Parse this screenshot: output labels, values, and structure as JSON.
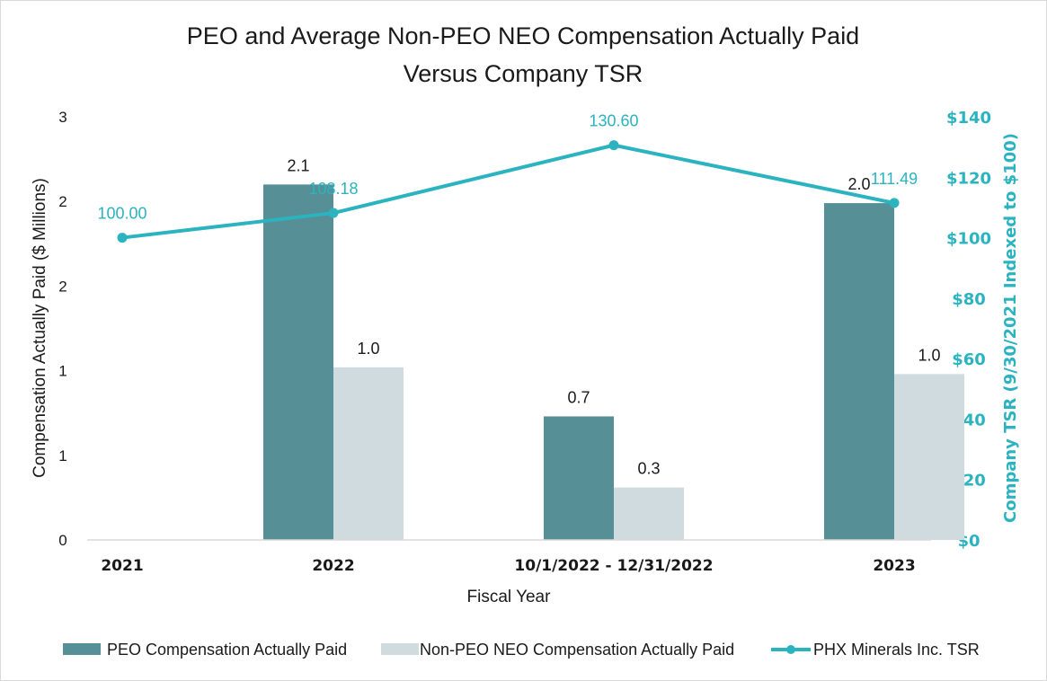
{
  "chart_data": {
    "type": "bar",
    "title_lines": [
      "PEO and Average Non-PEO NEO Compensation Actually Paid",
      "Versus Company TSR"
    ],
    "xlabel": "Fiscal Year",
    "ylabel": "Compensation Actually Paid ($ Millions)",
    "y2label": "Company TSR (9/30/2021 Indexed to $100)",
    "categories": [
      "2021",
      "2022",
      "10/1/2022 - 12/31/2022",
      "2023"
    ],
    "ylim": [
      0,
      2.5
    ],
    "y_ticks": [
      {
        "value": 0,
        "label": "0"
      },
      {
        "value": 0.5,
        "label": "1"
      },
      {
        "value": 1.0,
        "label": "1"
      },
      {
        "value": 1.5,
        "label": "2"
      },
      {
        "value": 2.0,
        "label": "2"
      },
      {
        "value": 2.5,
        "label": "3"
      }
    ],
    "y2lim": [
      0,
      140
    ],
    "y2_ticks": [
      {
        "value": 0,
        "label": "$0"
      },
      {
        "value": 20,
        "label": "$20"
      },
      {
        "value": 40,
        "label": "$40"
      },
      {
        "value": 60,
        "label": "$60"
      },
      {
        "value": 80,
        "label": "$80"
      },
      {
        "value": 100,
        "label": "$100"
      },
      {
        "value": 120,
        "label": "$120"
      },
      {
        "value": 140,
        "label": "$140"
      }
    ],
    "series": [
      {
        "name": "PEO Compensation Actually Paid",
        "type": "bar",
        "color": "#578f96",
        "values": [
          null,
          2.1,
          0.73,
          1.99
        ],
        "labels": [
          "",
          "2.1",
          "0.7",
          "2.0"
        ]
      },
      {
        "name": "Non-PEO NEO Compensation Actually Paid",
        "type": "bar",
        "color": "#cfdbdf",
        "values": [
          null,
          1.02,
          0.31,
          0.98
        ],
        "labels": [
          "",
          "1.0",
          "0.3",
          "1.0"
        ]
      },
      {
        "name": "PHX Minerals Inc. TSR",
        "type": "line",
        "axis": "right",
        "color": "#2bb3c0",
        "values": [
          100.0,
          108.18,
          130.6,
          111.49
        ],
        "labels": [
          "100.00",
          "108.18",
          "130.60",
          "111.49"
        ]
      }
    ],
    "grid": false,
    "legend_position": "bottom"
  }
}
